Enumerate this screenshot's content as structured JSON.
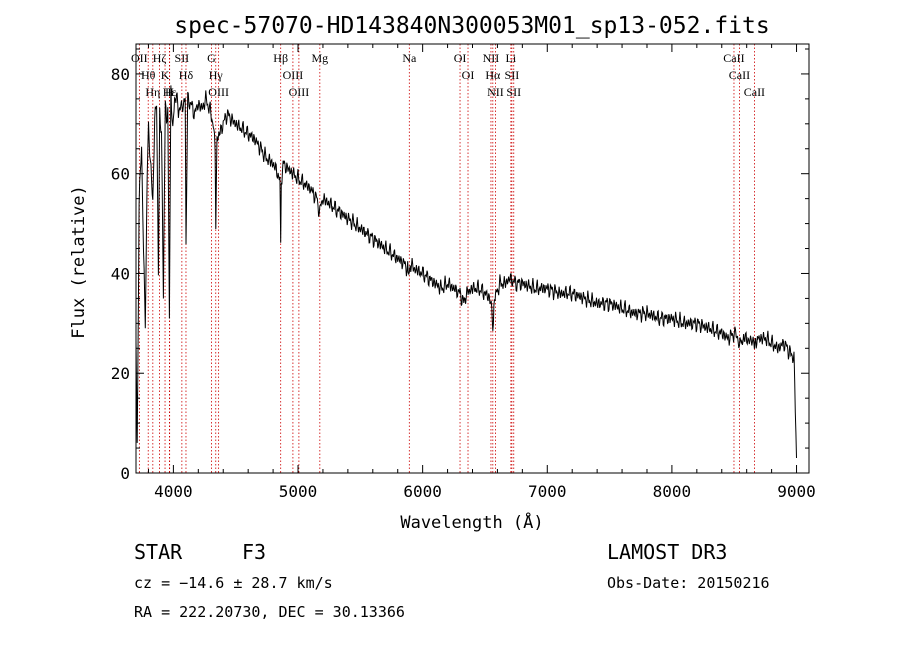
{
  "chart_data": {
    "type": "line",
    "title": "spec-57070-HD143840N300053M01_sp13-052.fits",
    "xlabel": "Wavelength (Å)",
    "ylabel": "Flux (relative)",
    "xlim": [
      3700,
      9100
    ],
    "ylim": [
      0,
      86
    ],
    "x_ticks": [
      "4000",
      "5000",
      "6000",
      "7000",
      "8000",
      "9000"
    ],
    "x_tick_values": [
      4000,
      5000,
      6000,
      7000,
      8000,
      9000
    ],
    "y_ticks": [
      "0",
      "20",
      "40",
      "60",
      "80"
    ],
    "y_tick_values": [
      0,
      20,
      40,
      60,
      80
    ],
    "series": [
      {
        "name": "flux",
        "x": [
          3700,
          3710,
          3725,
          3745,
          3760,
          3775,
          3790,
          3800,
          3815,
          3835,
          3850,
          3865,
          3880,
          3890,
          3905,
          3920,
          3935,
          3945,
          3955,
          3968,
          3980,
          3995,
          4010,
          4025,
          4040,
          4060,
          4080,
          4095,
          4101,
          4115,
          4140,
          4170,
          4200,
          4230,
          4260,
          4290,
          4320,
          4335,
          4340,
          4350,
          4370,
          4400,
          4430,
          4460,
          4500,
          4550,
          4600,
          4650,
          4700,
          4750,
          4800,
          4840,
          4855,
          4861,
          4866,
          4880,
          4920,
          4960,
          5000,
          5050,
          5100,
          5150,
          5175,
          5185,
          5200,
          5250,
          5300,
          5350,
          5400,
          5450,
          5500,
          5550,
          5600,
          5650,
          5700,
          5750,
          5800,
          5850,
          5880,
          5893,
          5900,
          5930,
          6000,
          6050,
          6100,
          6150,
          6200,
          6250,
          6300,
          6330,
          6350,
          6400,
          6450,
          6500,
          6540,
          6555,
          6563,
          6572,
          6590,
          6620,
          6660,
          6700,
          6750,
          6800,
          6900,
          7000,
          7100,
          7200,
          7300,
          7400,
          7500,
          7600,
          7700,
          7800,
          7900,
          8000,
          8100,
          8200,
          8300,
          8400,
          8450,
          8500,
          8542,
          8580,
          8600,
          8662,
          8700,
          8750,
          8800,
          8850,
          8900,
          8950,
          8980,
          9000
        ],
        "y": [
          26,
          5,
          55,
          65,
          45,
          30,
          60,
          70,
          62,
          55,
          70,
          75,
          40,
          72,
          68,
          35,
          75,
          70,
          74,
          30,
          78,
          68,
          75,
          76,
          72,
          74,
          73,
          76,
          45,
          75,
          74,
          72,
          74,
          73,
          75,
          73,
          70,
          65,
          50,
          67,
          68,
          70,
          72,
          71,
          70,
          69,
          68,
          67,
          65,
          63,
          62,
          60,
          58,
          45,
          58,
          62,
          61,
          60,
          59,
          58,
          57,
          55,
          52,
          54,
          55,
          54,
          53,
          52,
          51,
          50,
          49,
          48,
          47,
          46,
          45,
          44,
          43,
          42,
          41,
          39,
          42,
          41,
          40,
          39,
          38,
          37,
          38,
          37,
          36,
          34,
          36,
          37,
          37,
          36,
          35,
          33,
          28,
          34,
          36,
          38,
          38,
          39,
          38,
          38,
          37,
          37,
          36,
          36,
          35,
          34,
          34,
          33,
          32,
          32,
          31,
          31,
          30,
          30,
          29,
          28,
          27,
          28,
          26,
          27,
          27,
          26,
          27,
          27,
          26,
          25,
          26,
          24,
          23,
          3
        ]
      }
    ],
    "lines": [
      {
        "label": "Hε",
        "wave": 3970
      },
      {
        "label": "K",
        "wave": 3933
      },
      {
        "label": "Hδ",
        "wave": 4101
      },
      {
        "label": "H",
        "wave": 3968
      },
      {
        "label": "SII",
        "wave": 4068
      },
      {
        "label": "OIII",
        "wave": 4363
      },
      {
        "label": "Hγ",
        "wave": 4340
      },
      {
        "label": "G",
        "wave": 4305
      },
      {
        "label": "Hβ",
        "wave": 4861
      },
      {
        "label": "OIII",
        "wave": 4959
      },
      {
        "label": "OIII",
        "wave": 5007
      },
      {
        "label": "Mg",
        "wave": 5175
      },
      {
        "label": "Na",
        "wave": 5893
      },
      {
        "label": "OI",
        "wave": 6300
      },
      {
        "label": "OI",
        "wave": 6364
      },
      {
        "label": "Hα",
        "wave": 6563
      },
      {
        "label": "NII",
        "wave": 6548
      },
      {
        "label": "NII",
        "wave": 6584
      },
      {
        "label": "Li",
        "wave": 6708
      },
      {
        "label": "SII",
        "wave": 6716
      },
      {
        "label": "SII",
        "wave": 6731
      },
      {
        "label": "CaII",
        "wave": 8498
      },
      {
        "label": "CaII",
        "wave": 8542
      },
      {
        "label": "CaII",
        "wave": 8662
      },
      {
        "label": "OII",
        "wave": 3727
      },
      {
        "label": "Hθ",
        "wave": 3798
      },
      {
        "label": "Hη",
        "wave": 3835
      },
      {
        "label": "Hζ",
        "wave": 3889
      }
    ],
    "grid": false,
    "legend": "none"
  },
  "info": {
    "object_class": "STAR",
    "subclass": "F3",
    "survey": "LAMOST DR3",
    "cz_line": "cz = −14.6 ± 28.7 km/s",
    "obs_date": "Obs-Date: 20150216",
    "coords_line": "RA = 222.20730, DEC =  30.13366"
  },
  "colors": {
    "spectrum": "#000000",
    "line_marker": "#cc0000",
    "axes": "#000000"
  }
}
